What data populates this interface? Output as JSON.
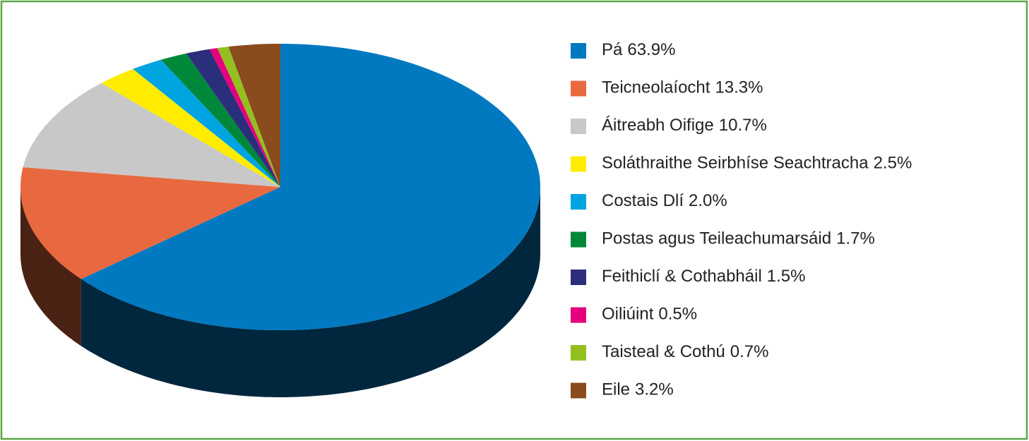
{
  "chart_data": {
    "type": "pie",
    "categories": [
      "Pá",
      "Teicneolaíocht",
      "Áitreabh Oifige",
      "Soláthraithe Seirbhíse Seachtracha",
      "Costais Dlí",
      "Postas agus Teileachumarsáid",
      "Feithiclí & Cothabháil",
      "Oiliúint",
      "Taisteal & Cothú",
      "Eile"
    ],
    "values": [
      63.9,
      13.3,
      10.7,
      2.5,
      2.0,
      1.7,
      1.5,
      0.5,
      0.7,
      3.2
    ],
    "value_labels": [
      "63.9%",
      "13.3%",
      "10.7%",
      "2.5%",
      "2.0%",
      "1.7%",
      "1.5%",
      "0.5%",
      "0.7%",
      "3.2%"
    ],
    "colors": [
      "#0079c1",
      "#e8693f",
      "#c8c8c8",
      "#ffec00",
      "#00a4e0",
      "#00883a",
      "#2b2e7a",
      "#e6007e",
      "#93c01f",
      "#8a4b1e"
    ],
    "legend": "right"
  }
}
